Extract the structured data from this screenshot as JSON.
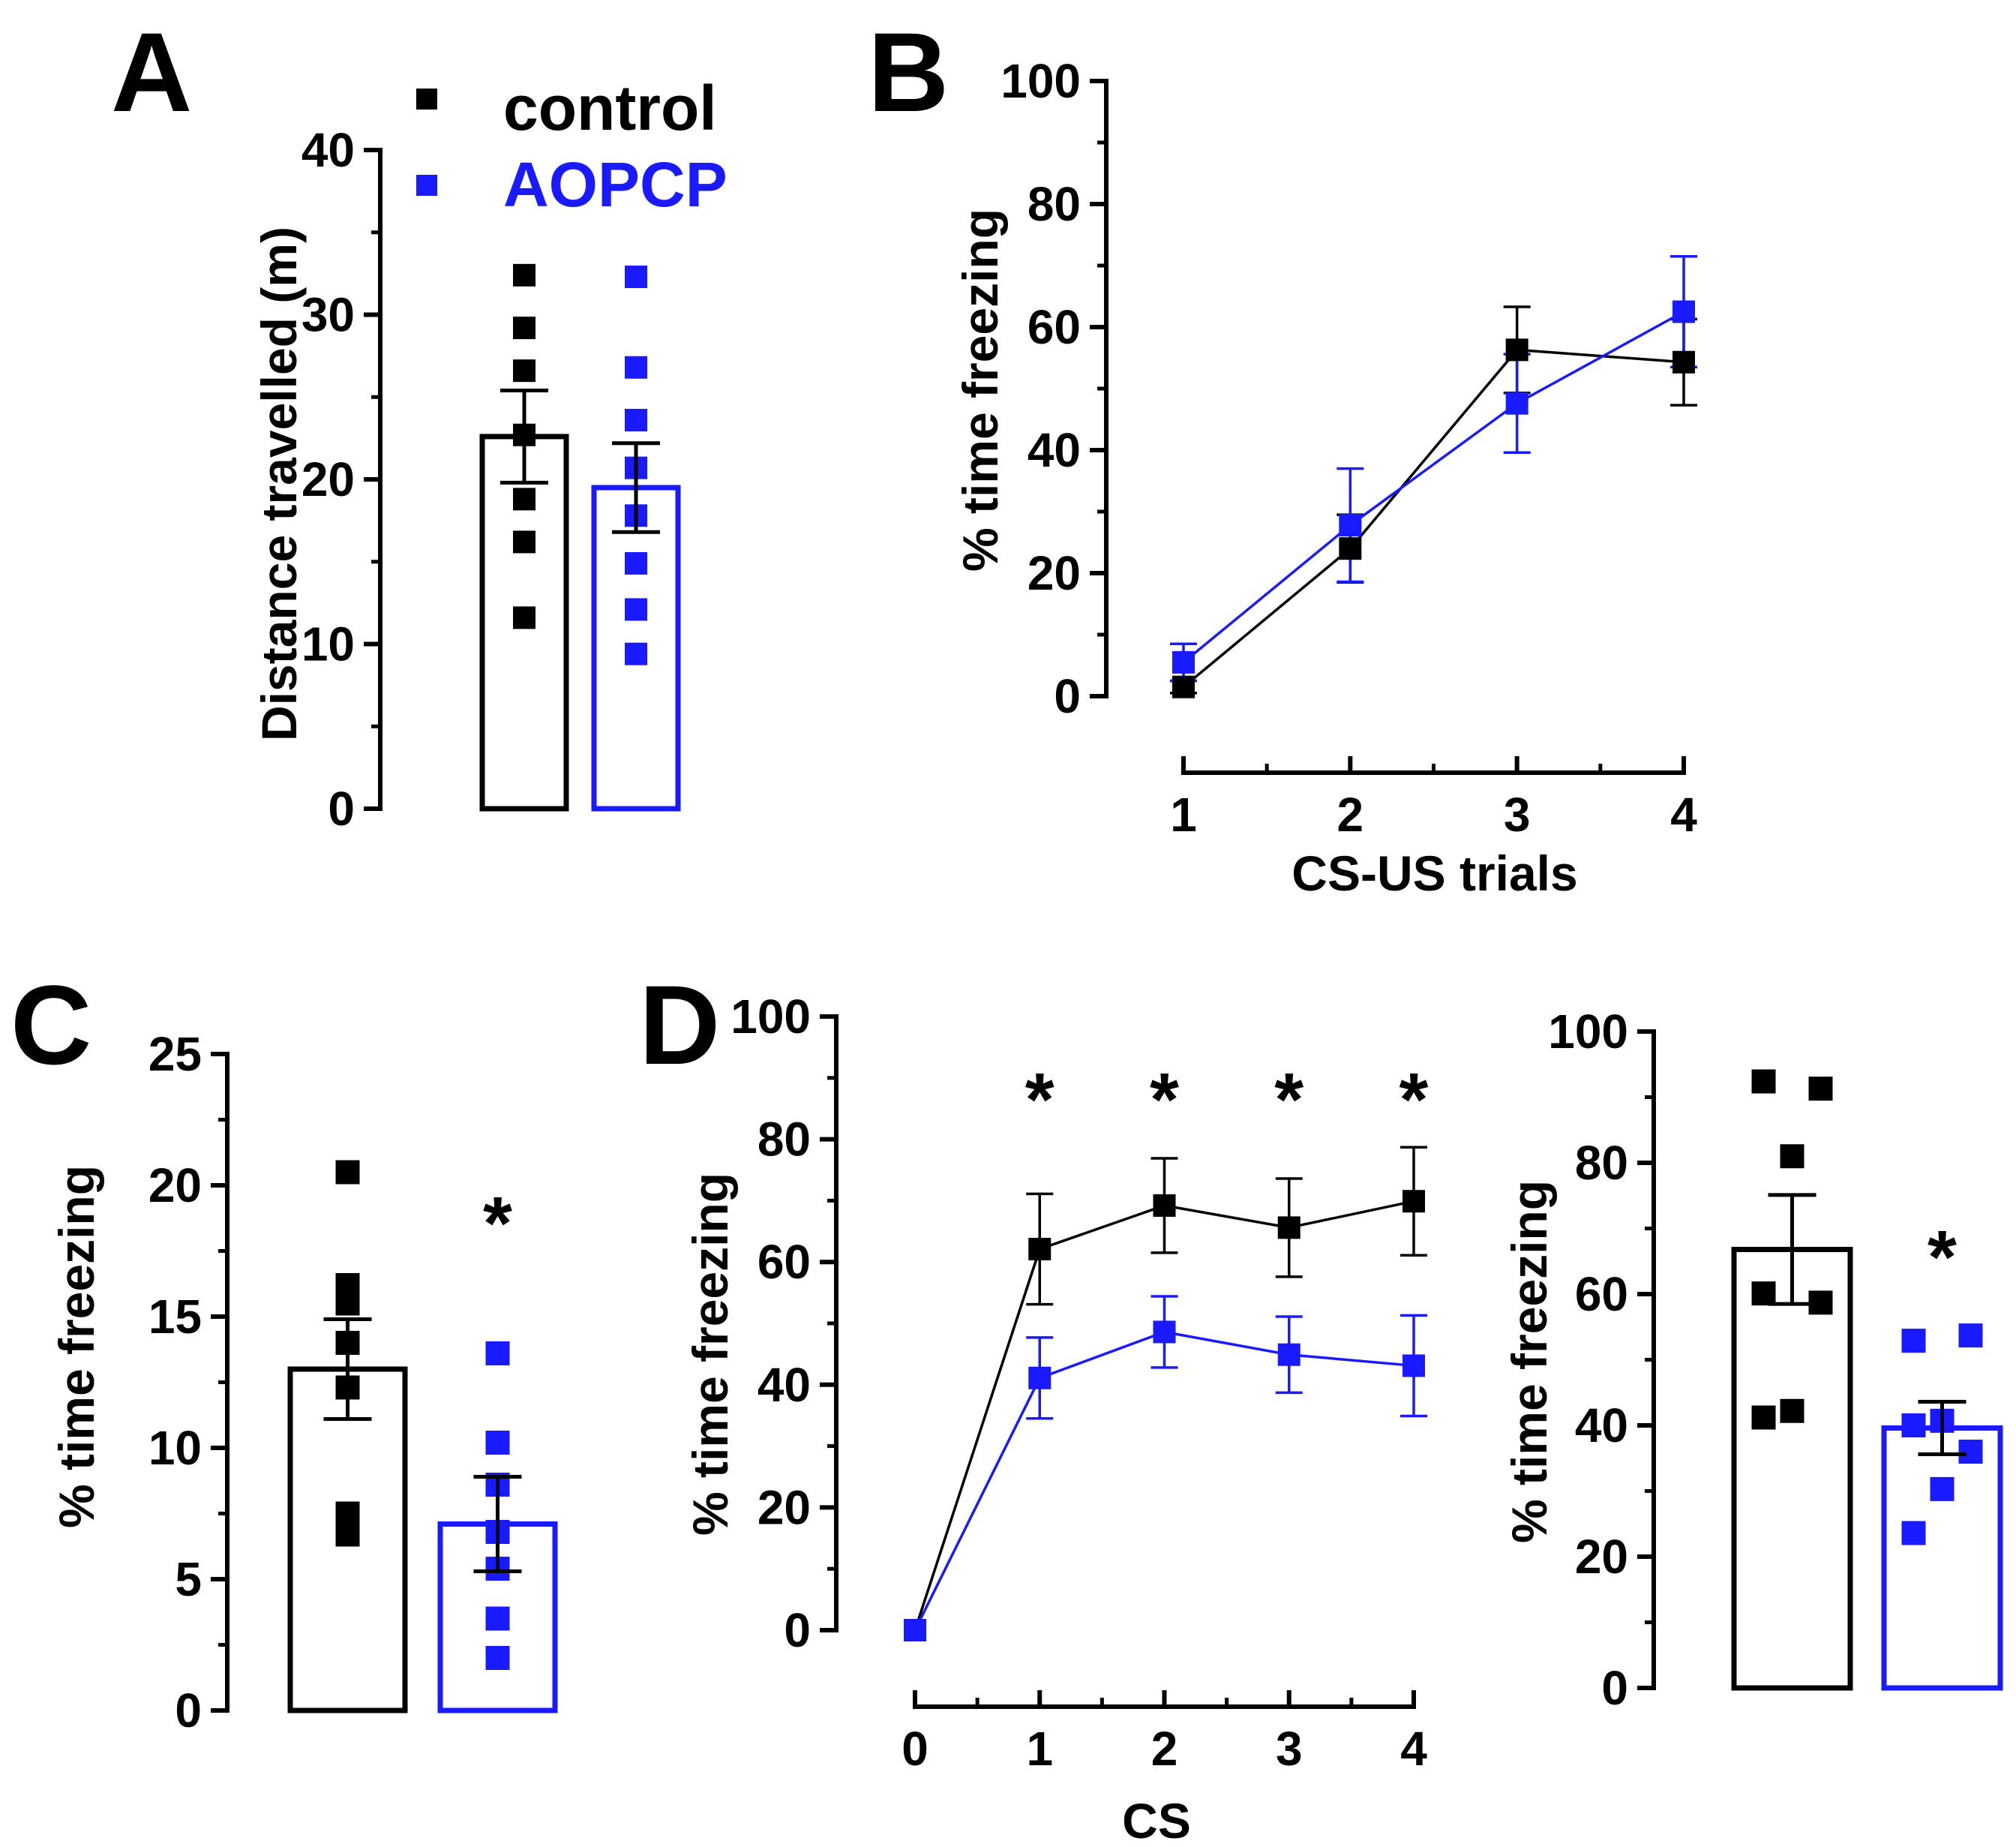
{
  "colors": {
    "control": "#000000",
    "aopcp": "#1a1aff"
  },
  "legend": {
    "control": "control",
    "aopcp": "AOPCP"
  },
  "chart_data": [
    {
      "id": "A",
      "panel_label": "A",
      "type": "bar",
      "ylabel": "Distance travelled (m)",
      "ylim": [
        0,
        40
      ],
      "yticks": [
        "0",
        "10",
        "20",
        "30",
        "40"
      ],
      "groups": [
        {
          "name": "control",
          "mean": 22.6,
          "sem": 2.8,
          "points": [
            32.4,
            29.2,
            26.6,
            22.7,
            18.8,
            16.2,
            11.6
          ]
        },
        {
          "name": "AOPCP",
          "mean": 19.5,
          "sem": 2.7,
          "points": [
            32.3,
            26.8,
            23.6,
            20.7,
            17.8,
            14.9,
            12.1,
            9.4
          ]
        }
      ]
    },
    {
      "id": "B",
      "panel_label": "B",
      "type": "line",
      "xlabel": "CS-US trials",
      "ylabel": "% time freezing",
      "x": [
        1,
        2,
        3,
        4
      ],
      "xticks": [
        "1",
        "2",
        "3",
        "4"
      ],
      "ylim": [
        0,
        100
      ],
      "yticks": [
        "0",
        "20",
        "40",
        "60",
        "80",
        "100"
      ],
      "series": [
        {
          "name": "control",
          "values": [
            1.5,
            24.0,
            56.3,
            54.3
          ],
          "sem": [
            1.0,
            5.5,
            7.0,
            7.0
          ]
        },
        {
          "name": "AOPCP",
          "values": [
            5.5,
            27.8,
            47.6,
            62.5
          ],
          "sem": [
            3.0,
            9.2,
            8.0,
            9.0
          ]
        }
      ]
    },
    {
      "id": "C",
      "panel_label": "C",
      "type": "bar",
      "ylabel": "% time freezing",
      "ylim": [
        0,
        25
      ],
      "yticks": [
        "0",
        "5",
        "10",
        "15",
        "20",
        "25"
      ],
      "significance": [
        "",
        "*"
      ],
      "groups": [
        {
          "name": "control",
          "mean": 13.0,
          "sem": 1.9,
          "points": [
            20.5,
            16.2,
            15.5,
            14.0,
            12.3,
            7.5,
            6.7
          ]
        },
        {
          "name": "AOPCP",
          "mean": 7.1,
          "sem": 1.8,
          "points": [
            13.6,
            10.2,
            8.6,
            6.8,
            5.4,
            3.5,
            2.0
          ]
        }
      ]
    },
    {
      "id": "D1",
      "panel_label": "D",
      "type": "line",
      "xlabel": "CS",
      "ylabel": "% time freezing",
      "x": [
        0,
        1,
        2,
        3,
        4
      ],
      "xticks": [
        "0",
        "1",
        "2",
        "3",
        "4"
      ],
      "ylim": [
        0,
        100
      ],
      "yticks": [
        "0",
        "20",
        "40",
        "60",
        "80",
        "100"
      ],
      "significance": [
        "",
        "*",
        "*",
        "*",
        "*"
      ],
      "series": [
        {
          "name": "control",
          "values": [
            0,
            62.1,
            69.2,
            65.6,
            69.9
          ],
          "sem": [
            0,
            9.0,
            7.7,
            8.0,
            8.8
          ]
        },
        {
          "name": "AOPCP",
          "values": [
            0,
            41.1,
            48.6,
            44.9,
            43.1
          ],
          "sem": [
            0,
            6.6,
            5.8,
            6.2,
            8.2
          ]
        }
      ]
    },
    {
      "id": "D2",
      "panel_label": "",
      "type": "bar",
      "ylabel": "% time freezing",
      "ylim": [
        0,
        100
      ],
      "yticks": [
        "0",
        "20",
        "40",
        "60",
        "80",
        "100"
      ],
      "significance": [
        "",
        "*"
      ],
      "groups": [
        {
          "name": "control",
          "mean": 66.8,
          "sem": 8.3,
          "points": [
            92.4,
            91.3,
            81.0,
            60.1,
            58.7,
            42.2,
            41.2
          ]
        },
        {
          "name": "AOPCP",
          "mean": 39.6,
          "sem": 4.0,
          "points": [
            52.9,
            53.7,
            40.7,
            40.0,
            36.0,
            30.3,
            23.6
          ]
        }
      ]
    }
  ]
}
